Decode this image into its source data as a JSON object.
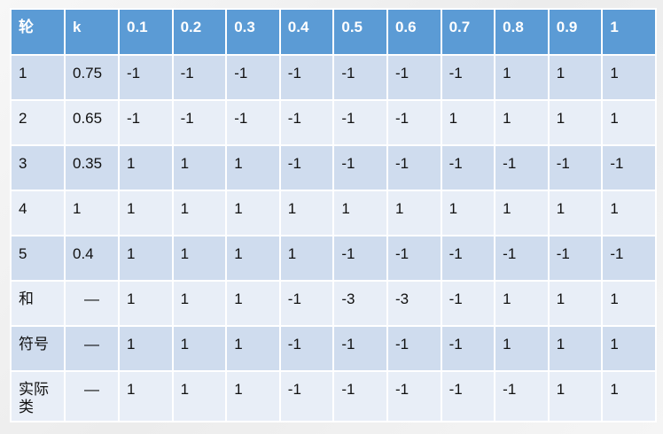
{
  "table": {
    "headers": [
      "轮",
      "k",
      "0.1",
      "0.2",
      "0.3",
      "0.4",
      "0.5",
      "0.6",
      "0.7",
      "0.8",
      "0.9",
      "1"
    ],
    "rows": [
      [
        "1",
        "0.75",
        "-1",
        "-1",
        "-1",
        "-1",
        "-1",
        "-1",
        "-1",
        "1",
        "1",
        "1"
      ],
      [
        "2",
        "0.65",
        "-1",
        "-1",
        "-1",
        "-1",
        "-1",
        "-1",
        "1",
        "1",
        "1",
        "1"
      ],
      [
        "3",
        "0.35",
        "1",
        "1",
        "1",
        "-1",
        "-1",
        "-1",
        "-1",
        "-1",
        "-1",
        "-1"
      ],
      [
        "4",
        "1",
        "1",
        "1",
        "1",
        "1",
        "1",
        "1",
        "1",
        "1",
        "1",
        "1"
      ],
      [
        "5",
        "0.4",
        "1",
        "1",
        "1",
        "1",
        "-1",
        "-1",
        "-1",
        "-1",
        "-1",
        "-1"
      ],
      [
        "和",
        "—",
        "1",
        "1",
        "1",
        "-1",
        "-3",
        "-3",
        "-1",
        "1",
        "1",
        "1"
      ],
      [
        "符号",
        "—",
        "1",
        "1",
        "1",
        "-1",
        "-1",
        "-1",
        "-1",
        "1",
        "1",
        "1"
      ],
      [
        "实际类",
        "—",
        "1",
        "1",
        "1",
        "-1",
        "-1",
        "-1",
        "-1",
        "-1",
        "1",
        "1"
      ]
    ]
  },
  "colors": {
    "header_bg": "#5b9bd5",
    "row_band_dark": "#cfdcee",
    "row_band_light": "#e8eef7"
  }
}
